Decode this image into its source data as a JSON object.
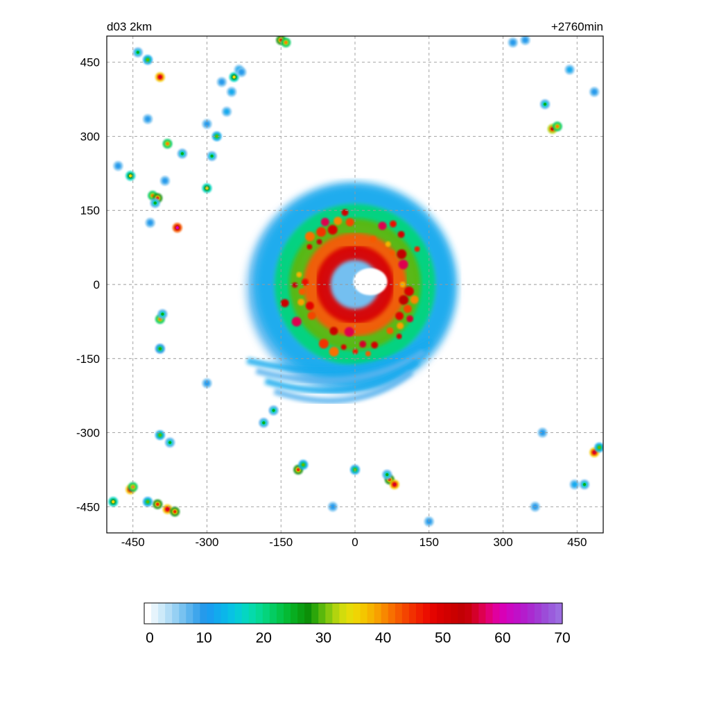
{
  "chart_data": {
    "type": "heatmap",
    "title_left": "d03 2km",
    "title_right": "+2760min",
    "xlabel": "",
    "ylabel": "",
    "xlim": [
      -503,
      503
    ],
    "ylim": [
      -503,
      503
    ],
    "xticks": [
      -450,
      -300,
      -150,
      0,
      150,
      300,
      450
    ],
    "yticks": [
      450,
      300,
      150,
      0,
      -150,
      -300,
      -450
    ],
    "grid": true,
    "colorbar": {
      "orientation": "horizontal",
      "range": [
        0,
        70
      ],
      "ticks": [
        0,
        10,
        20,
        30,
        40,
        50,
        60,
        70
      ],
      "colors": [
        "#ffffff",
        "#e6f4fc",
        "#cdeaf9",
        "#b2ddf6",
        "#96d0f3",
        "#78c2f0",
        "#5bb4ee",
        "#3fa6ec",
        "#259aeb",
        "#1a9ef0",
        "#12aaee",
        "#0bb6ea",
        "#08c2e4",
        "#06cdd6",
        "#05d6c2",
        "#05daab",
        "#05d994",
        "#05d47c",
        "#04cc62",
        "#04c44a",
        "#05ba34",
        "#08ad20",
        "#0a9e12",
        "#0c8f08",
        "#2ca60a",
        "#5ab80c",
        "#86c80e",
        "#b2d40e",
        "#d2dc0c",
        "#e6dc08",
        "#f0d404",
        "#f4c600",
        "#f6b400",
        "#f8a000",
        "#f88800",
        "#f87000",
        "#f65a00",
        "#f44400",
        "#f23000",
        "#f01e00",
        "#ec0e00",
        "#e40400",
        "#da0000",
        "#d20000",
        "#ca0000",
        "#c20004",
        "#c8000c",
        "#d4002a",
        "#de0050",
        "#e20078",
        "#e0009e",
        "#d800b6",
        "#cc08c2",
        "#c010c8",
        "#b41ccc",
        "#aa2ad0",
        "#a23ad4",
        "#9c4cd8",
        "#9a5cdc",
        "#9c6ce0"
      ]
    },
    "features": [
      {
        "x": 0,
        "y": 0,
        "kind": "hurricane",
        "radius": 230
      }
    ],
    "cells": [
      {
        "x": -440,
        "y": 470,
        "v": 25
      },
      {
        "x": -420,
        "y": 455,
        "v": 30
      },
      {
        "x": -150,
        "y": 495,
        "v": 45
      },
      {
        "x": -140,
        "y": 490,
        "v": 40
      },
      {
        "x": -245,
        "y": 420,
        "v": 35
      },
      {
        "x": -235,
        "y": 435,
        "v": 20
      },
      {
        "x": -395,
        "y": 420,
        "v": 55
      },
      {
        "x": -270,
        "y": 410,
        "v": 15
      },
      {
        "x": -250,
        "y": 390,
        "v": 20
      },
      {
        "x": -230,
        "y": 430,
        "v": 10
      },
      {
        "x": -260,
        "y": 350,
        "v": 20
      },
      {
        "x": -280,
        "y": 300,
        "v": 30
      },
      {
        "x": -290,
        "y": 260,
        "v": 25
      },
      {
        "x": -300,
        "y": 195,
        "v": 35
      },
      {
        "x": -380,
        "y": 285,
        "v": 40
      },
      {
        "x": -350,
        "y": 265,
        "v": 25
      },
      {
        "x": -455,
        "y": 220,
        "v": 35
      },
      {
        "x": -410,
        "y": 180,
        "v": 40
      },
      {
        "x": -400,
        "y": 175,
        "v": 45
      },
      {
        "x": -405,
        "y": 165,
        "v": 25
      },
      {
        "x": -415,
        "y": 125,
        "v": 15
      },
      {
        "x": -360,
        "y": 115,
        "v": 60
      },
      {
        "x": -385,
        "y": 210,
        "v": 18
      },
      {
        "x": -420,
        "y": 335,
        "v": 8
      },
      {
        "x": -480,
        "y": 240,
        "v": 8
      },
      {
        "x": -300,
        "y": 325,
        "v": 8
      },
      {
        "x": -395,
        "y": -70,
        "v": 40
      },
      {
        "x": -390,
        "y": -60,
        "v": 25
      },
      {
        "x": -395,
        "y": -130,
        "v": 28
      },
      {
        "x": -300,
        "y": -200,
        "v": 15
      },
      {
        "x": -165,
        "y": -255,
        "v": 25
      },
      {
        "x": -185,
        "y": -280,
        "v": 25
      },
      {
        "x": -395,
        "y": -305,
        "v": 30
      },
      {
        "x": -375,
        "y": -320,
        "v": 25
      },
      {
        "x": -455,
        "y": -415,
        "v": 55
      },
      {
        "x": -450,
        "y": -410,
        "v": 40
      },
      {
        "x": -490,
        "y": -440,
        "v": 35
      },
      {
        "x": -400,
        "y": -445,
        "v": 45
      },
      {
        "x": -380,
        "y": -455,
        "v": 55
      },
      {
        "x": -365,
        "y": -460,
        "v": 45
      },
      {
        "x": -420,
        "y": -440,
        "v": 30
      },
      {
        "x": -115,
        "y": -375,
        "v": 45
      },
      {
        "x": -105,
        "y": -365,
        "v": 30
      },
      {
        "x": 0,
        "y": -375,
        "v": 30
      },
      {
        "x": -45,
        "y": -450,
        "v": 15
      },
      {
        "x": 70,
        "y": -395,
        "v": 45
      },
      {
        "x": 80,
        "y": -405,
        "v": 55
      },
      {
        "x": 65,
        "y": -385,
        "v": 25
      },
      {
        "x": 150,
        "y": -480,
        "v": 10
      },
      {
        "x": 385,
        "y": 365,
        "v": 25
      },
      {
        "x": 400,
        "y": 315,
        "v": 50
      },
      {
        "x": 410,
        "y": 320,
        "v": 40
      },
      {
        "x": 435,
        "y": 435,
        "v": 20
      },
      {
        "x": 485,
        "y": -340,
        "v": 55
      },
      {
        "x": 495,
        "y": -330,
        "v": 30
      },
      {
        "x": 445,
        "y": -405,
        "v": 20
      },
      {
        "x": 465,
        "y": -405,
        "v": 25
      },
      {
        "x": 380,
        "y": -300,
        "v": 8
      },
      {
        "x": 365,
        "y": -450,
        "v": 8
      },
      {
        "x": 485,
        "y": 390,
        "v": 8
      },
      {
        "x": 345,
        "y": 495,
        "v": 8
      },
      {
        "x": 320,
        "y": 490,
        "v": 10
      }
    ]
  }
}
